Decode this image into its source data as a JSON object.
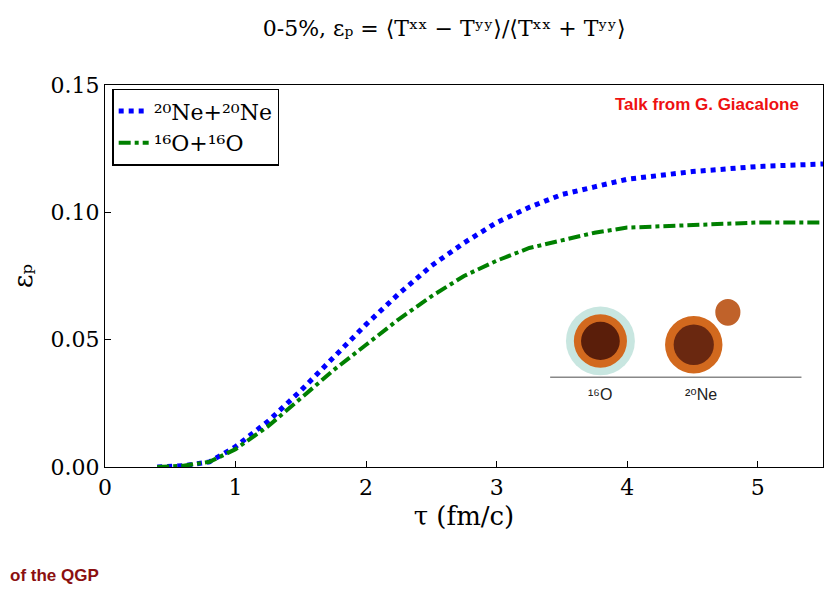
{
  "chart_data": {
    "type": "line",
    "title": "0-5%, εₚ = ⟨Tˣˣ − Tʸʸ⟩/⟨Tˣˣ + Tʸʸ⟩",
    "x_label": "τ (fm/c)",
    "y_label": "εₚ",
    "xlim": [
      0,
      5.5
    ],
    "ylim": [
      0,
      0.15
    ],
    "xticks": [
      0,
      1,
      2,
      3,
      4,
      5
    ],
    "yticks": [
      {
        "value": 0,
        "label": "0.00"
      },
      {
        "value": 0.05,
        "label": "0.05"
      },
      {
        "value": 0.1,
        "label": "0.10"
      },
      {
        "value": 0.15,
        "label": "0.15"
      }
    ],
    "legend": "upper left",
    "grid": false,
    "x": [
      0.4,
      0.6,
      0.8,
      1.0,
      1.25,
      1.5,
      1.75,
      2.0,
      2.25,
      2.5,
      2.75,
      3.0,
      3.25,
      3.5,
      3.75,
      4.0,
      4.5,
      5.0,
      5.5
    ],
    "series": [
      {
        "name": "²⁰Ne+²⁰Ne",
        "color": "#0000ff",
        "line_style": "dotted",
        "values": [
          0,
          0.0005,
          0.002,
          0.008,
          0.018,
          0.03,
          0.043,
          0.056,
          0.068,
          0.079,
          0.088,
          0.096,
          0.102,
          0.107,
          0.11,
          0.113,
          0.116,
          0.118,
          0.119
        ]
      },
      {
        "name": "¹⁶O+¹⁶O",
        "color": "#008000",
        "line_style": "dashdot",
        "values": [
          0,
          0.0005,
          0.002,
          0.007,
          0.016,
          0.027,
          0.038,
          0.048,
          0.058,
          0.067,
          0.075,
          0.081,
          0.086,
          0.089,
          0.092,
          0.094,
          0.095,
          0.096,
          0.096
        ]
      }
    ],
    "annotations": [
      "Talk from G. Giacalone",
      "¹⁶O",
      "²⁰Ne",
      "of the QGP"
    ]
  }
}
